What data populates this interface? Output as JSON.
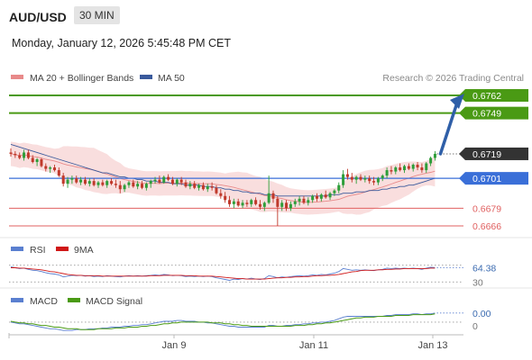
{
  "header": {
    "symbol": "AUD/USD",
    "timeframe": "30 MIN",
    "datetime": "Monday, January 12, 2026 5:45:48 PM CET"
  },
  "legend": {
    "ma20": "MA 20 + Bollinger Bands",
    "ma50": "MA 50",
    "credit": "Research © 2026 Trading Central",
    "rsi": "RSI",
    "rsi_signal": "9MA",
    "macd": "MACD",
    "macd_signal": "MACD Signal"
  },
  "colors": {
    "up_candle": "#2e9e3a",
    "down_candle": "#c0392b",
    "ma20": "#e88a8a",
    "ma50": "#3a5a9c",
    "resistance": "#4a9a14",
    "support_blue": "#3a6fd8",
    "support_red": "#e06060",
    "arrow": "#2f5fa8",
    "current_price_bg": "#333333"
  },
  "chart_data": {
    "type": "candlestick",
    "x_ticks": [
      "Jan 9",
      "Jan 11",
      "Jan 13"
    ],
    "levels": [
      {
        "value": 0.6762,
        "label": "0.6762",
        "kind": "resistance"
      },
      {
        "value": 0.6749,
        "label": "0.6749",
        "kind": "resistance"
      },
      {
        "value": 0.6719,
        "label": "0.6719",
        "kind": "current"
      },
      {
        "value": 0.6701,
        "label": "0.6701",
        "kind": "pivot"
      },
      {
        "value": 0.6679,
        "label": "0.6679",
        "kind": "support"
      },
      {
        "value": 0.6666,
        "label": "0.6666",
        "kind": "support"
      }
    ],
    "candles": [
      [
        0.672,
        0.6723,
        0.6717,
        0.6719
      ],
      [
        0.6719,
        0.6721,
        0.6716,
        0.6718
      ],
      [
        0.6718,
        0.672,
        0.6715,
        0.6716
      ],
      [
        0.6716,
        0.6722,
        0.6714,
        0.672
      ],
      [
        0.672,
        0.6722,
        0.6715,
        0.6716
      ],
      [
        0.6716,
        0.6718,
        0.6712,
        0.6713
      ],
      [
        0.6713,
        0.6716,
        0.671,
        0.6715
      ],
      [
        0.6715,
        0.6716,
        0.6709,
        0.671
      ],
      [
        0.671,
        0.6712,
        0.6706,
        0.6708
      ],
      [
        0.6708,
        0.671,
        0.6705,
        0.6709
      ],
      [
        0.6709,
        0.6711,
        0.6706,
        0.6707
      ],
      [
        0.6707,
        0.6709,
        0.6702,
        0.6703
      ],
      [
        0.6703,
        0.6705,
        0.6695,
        0.6697
      ],
      [
        0.6697,
        0.6702,
        0.6694,
        0.67
      ],
      [
        0.67,
        0.6703,
        0.6697,
        0.6701
      ],
      [
        0.6701,
        0.6703,
        0.6697,
        0.6698
      ],
      [
        0.6698,
        0.6702,
        0.6696,
        0.67
      ],
      [
        0.67,
        0.6702,
        0.6696,
        0.6697
      ],
      [
        0.6697,
        0.6701,
        0.6695,
        0.6699
      ],
      [
        0.6699,
        0.6701,
        0.6695,
        0.6696
      ],
      [
        0.6696,
        0.6699,
        0.6694,
        0.6698
      ],
      [
        0.6698,
        0.67,
        0.6695,
        0.6696
      ],
      [
        0.6696,
        0.67,
        0.6694,
        0.6699
      ],
      [
        0.6699,
        0.6701,
        0.6696,
        0.6697
      ],
      [
        0.6697,
        0.67,
        0.6694,
        0.6696
      ],
      [
        0.6696,
        0.6699,
        0.669,
        0.6693
      ],
      [
        0.6693,
        0.6697,
        0.6691,
        0.6696
      ],
      [
        0.6696,
        0.6699,
        0.6694,
        0.6698
      ],
      [
        0.6698,
        0.67,
        0.6694,
        0.6695
      ],
      [
        0.6695,
        0.6699,
        0.6693,
        0.6697
      ],
      [
        0.6697,
        0.6699,
        0.6693,
        0.6694
      ],
      [
        0.6694,
        0.6698,
        0.6692,
        0.6697
      ],
      [
        0.6697,
        0.67,
        0.6694,
        0.6699
      ],
      [
        0.6699,
        0.6702,
        0.6697,
        0.67
      ],
      [
        0.67,
        0.6703,
        0.6697,
        0.6698
      ],
      [
        0.6698,
        0.6703,
        0.6697,
        0.6702
      ],
      [
        0.6702,
        0.6704,
        0.6699,
        0.67
      ],
      [
        0.67,
        0.6702,
        0.6696,
        0.6697
      ],
      [
        0.6697,
        0.6701,
        0.6695,
        0.67
      ],
      [
        0.67,
        0.6702,
        0.6696,
        0.6698
      ],
      [
        0.6698,
        0.67,
        0.6694,
        0.6695
      ],
      [
        0.6695,
        0.6699,
        0.6693,
        0.6697
      ],
      [
        0.6697,
        0.6699,
        0.6693,
        0.6694
      ],
      [
        0.6694,
        0.6697,
        0.6692,
        0.6696
      ],
      [
        0.6696,
        0.6698,
        0.6692,
        0.6693
      ],
      [
        0.6693,
        0.6697,
        0.6691,
        0.6695
      ],
      [
        0.6695,
        0.6698,
        0.6692,
        0.6694
      ],
      [
        0.6694,
        0.6696,
        0.6689,
        0.669
      ],
      [
        0.669,
        0.6693,
        0.6686,
        0.6688
      ],
      [
        0.6688,
        0.6691,
        0.6683,
        0.6685
      ],
      [
        0.6685,
        0.6688,
        0.668,
        0.6682
      ],
      [
        0.6682,
        0.6686,
        0.6679,
        0.6684
      ],
      [
        0.6684,
        0.6686,
        0.668,
        0.6681
      ],
      [
        0.6681,
        0.6685,
        0.6679,
        0.6683
      ],
      [
        0.6683,
        0.6685,
        0.668,
        0.6682
      ],
      [
        0.6682,
        0.6686,
        0.668,
        0.6685
      ],
      [
        0.6685,
        0.6687,
        0.6681,
        0.6682
      ],
      [
        0.6682,
        0.6685,
        0.6678,
        0.668
      ],
      [
        0.668,
        0.6684,
        0.6677,
        0.6683
      ],
      [
        0.6683,
        0.6703,
        0.6682,
        0.669
      ],
      [
        0.669,
        0.6692,
        0.6683,
        0.6686
      ],
      [
        0.6686,
        0.6688,
        0.6666,
        0.668
      ],
      [
        0.668,
        0.6685,
        0.6677,
        0.6683
      ],
      [
        0.6683,
        0.6685,
        0.6677,
        0.6679
      ],
      [
        0.6679,
        0.6684,
        0.6677,
        0.6682
      ],
      [
        0.6682,
        0.6686,
        0.668,
        0.6684
      ],
      [
        0.6684,
        0.6688,
        0.6681,
        0.6686
      ],
      [
        0.6686,
        0.6688,
        0.6682,
        0.6683
      ],
      [
        0.6683,
        0.6687,
        0.6681,
        0.6685
      ],
      [
        0.6685,
        0.6689,
        0.6683,
        0.6688
      ],
      [
        0.6688,
        0.669,
        0.6684,
        0.6686
      ],
      [
        0.6686,
        0.669,
        0.6684,
        0.6689
      ],
      [
        0.6689,
        0.6692,
        0.6686,
        0.6687
      ],
      [
        0.6687,
        0.6691,
        0.6685,
        0.669
      ],
      [
        0.669,
        0.6693,
        0.6688,
        0.6692
      ],
      [
        0.6692,
        0.6698,
        0.669,
        0.6696
      ],
      [
        0.6696,
        0.6707,
        0.6694,
        0.6704
      ],
      [
        0.6704,
        0.6708,
        0.67,
        0.6702
      ],
      [
        0.6702,
        0.6705,
        0.6698,
        0.67
      ],
      [
        0.67,
        0.6703,
        0.6697,
        0.6702
      ],
      [
        0.6702,
        0.6704,
        0.6699,
        0.67
      ],
      [
        0.67,
        0.6703,
        0.6698,
        0.6701
      ],
      [
        0.6701,
        0.6703,
        0.6697,
        0.6699
      ],
      [
        0.6699,
        0.6702,
        0.6696,
        0.6698
      ],
      [
        0.6698,
        0.6702,
        0.6696,
        0.6701
      ],
      [
        0.6701,
        0.6704,
        0.6699,
        0.6703
      ],
      [
        0.6703,
        0.6709,
        0.6701,
        0.6707
      ],
      [
        0.6707,
        0.671,
        0.6704,
        0.6706
      ],
      [
        0.6706,
        0.671,
        0.6704,
        0.6709
      ],
      [
        0.6709,
        0.6712,
        0.6706,
        0.6707
      ],
      [
        0.6707,
        0.6711,
        0.6705,
        0.671
      ],
      [
        0.671,
        0.6712,
        0.6707,
        0.6708
      ],
      [
        0.6708,
        0.6712,
        0.6706,
        0.6711
      ],
      [
        0.6711,
        0.6713,
        0.6707,
        0.6709
      ],
      [
        0.6709,
        0.6712,
        0.6705,
        0.6707
      ],
      [
        0.6707,
        0.6713,
        0.6705,
        0.6712
      ],
      [
        0.6712,
        0.6717,
        0.671,
        0.6716
      ],
      [
        0.6716,
        0.6721,
        0.6714,
        0.6719
      ]
    ],
    "ma50": [
      0.6726,
      0.6725,
      0.6724,
      0.6723,
      0.6722,
      0.6721,
      0.672,
      0.6719,
      0.6718,
      0.6717,
      0.6716,
      0.6715,
      0.6714,
      0.6713,
      0.6712,
      0.6711,
      0.671,
      0.6709,
      0.6708,
      0.6707,
      0.6706,
      0.6705,
      0.6705,
      0.6704,
      0.6703,
      0.6702,
      0.6702,
      0.6701,
      0.6701,
      0.67,
      0.67,
      0.6699,
      0.6699,
      0.6699,
      0.6698,
      0.6698,
      0.6698,
      0.6697,
      0.6697,
      0.6697,
      0.6696,
      0.6696,
      0.6696,
      0.6696,
      0.6695,
      0.6695,
      0.6695,
      0.6694,
      0.6694,
      0.6693,
      0.6693,
      0.6692,
      0.6692,
      0.6691,
      0.6691,
      0.669,
      0.669,
      0.669,
      0.6689,
      0.6689,
      0.6689,
      0.6688,
      0.6688,
      0.6688,
      0.6688,
      0.6688,
      0.6688,
      0.6688,
      0.6688,
      0.6688,
      0.6688,
      0.6688,
      0.6688,
      0.6689,
      0.6689,
      0.6689,
      0.669,
      0.669,
      0.669,
      0.6691,
      0.6691,
      0.6691,
      0.6692,
      0.6692,
      0.6692,
      0.6693,
      0.6693,
      0.6694,
      0.6694,
      0.6695,
      0.6695,
      0.6696,
      0.6696,
      0.6697,
      0.6698,
      0.6699,
      0.67,
      0.6701
    ],
    "rsi": {
      "value_label": "64.38",
      "level_label": "30",
      "levels": [
        70,
        30
      ],
      "ylim": [
        20,
        80
      ],
      "rsi": [
        66,
        64,
        62,
        63,
        60,
        58,
        57,
        55,
        52,
        50,
        49,
        47,
        42,
        44,
        46,
        45,
        46,
        44,
        45,
        43,
        44,
        43,
        45,
        44,
        43,
        42,
        44,
        45,
        44,
        45,
        44,
        45,
        46,
        47,
        46,
        48,
        47,
        45,
        46,
        45,
        43,
        44,
        43,
        44,
        43,
        44,
        43,
        40,
        38,
        36,
        34,
        37,
        36,
        38,
        37,
        39,
        37,
        36,
        38,
        45,
        43,
        40,
        42,
        41,
        43,
        44,
        45,
        44,
        45,
        47,
        46,
        48,
        47,
        49,
        51,
        55,
        62,
        60,
        58,
        59,
        58,
        59,
        58,
        57,
        59,
        60,
        63,
        62,
        63,
        62,
        63,
        62,
        63,
        62,
        60,
        63,
        65,
        64.38
      ],
      "ma9": [
        64,
        64,
        63,
        63,
        62,
        61,
        60,
        59,
        57,
        55,
        54,
        52,
        50,
        48,
        47,
        46,
        46,
        45,
        45,
        45,
        45,
        44,
        44,
        44,
        44,
        44,
        44,
        44,
        44,
        44,
        44,
        44,
        45,
        45,
        45,
        46,
        46,
        46,
        46,
        46,
        45,
        45,
        45,
        44,
        44,
        44,
        44,
        43,
        42,
        41,
        40,
        39,
        38,
        38,
        37,
        37,
        37,
        37,
        37,
        38,
        39,
        40,
        40,
        41,
        41,
        42,
        42,
        43,
        43,
        44,
        45,
        45,
        46,
        46,
        47,
        48,
        50,
        52,
        54,
        55,
        57,
        58,
        58,
        58,
        59,
        59,
        60,
        60,
        61,
        61,
        62,
        62,
        62,
        62,
        62,
        62,
        63,
        63
      ]
    },
    "macd": {
      "value_label": "0.00",
      "zero_label": "0",
      "ylim": [
        -0.0012,
        0.0014
      ],
      "macd": [
        0.0,
        -0.0001,
        -0.0002,
        -0.0002,
        -0.0003,
        -0.0004,
        -0.0005,
        -0.0006,
        -0.0007,
        -0.0008,
        -0.0008,
        -0.0009,
        -0.001,
        -0.001,
        -0.001,
        -0.0009,
        -0.0009,
        -0.0009,
        -0.0008,
        -0.0008,
        -0.0008,
        -0.0007,
        -0.0007,
        -0.0006,
        -0.0006,
        -0.0006,
        -0.0005,
        -0.0005,
        -0.0004,
        -0.0004,
        -0.0003,
        -0.0003,
        -0.0002,
        -0.0001,
        0.0,
        0.0001,
        0.0001,
        0.0001,
        0.0002,
        0.0002,
        0.0001,
        0.0001,
        0.0001,
        0.0,
        0.0,
        -0.0001,
        -0.0001,
        -0.0002,
        -0.0003,
        -0.0004,
        -0.0005,
        -0.0005,
        -0.0006,
        -0.0006,
        -0.0006,
        -0.0006,
        -0.0006,
        -0.0006,
        -0.0006,
        -0.0004,
        -0.0004,
        -0.0005,
        -0.0005,
        -0.0004,
        -0.0004,
        -0.0003,
        -0.0003,
        -0.0002,
        -0.0002,
        -0.0001,
        -0.0001,
        0.0,
        0.0,
        0.0001,
        0.0002,
        0.0004,
        0.0006,
        0.0007,
        0.0007,
        0.0007,
        0.0007,
        0.0007,
        0.0007,
        0.0007,
        0.0007,
        0.0007,
        0.0008,
        0.0008,
        0.0009,
        0.0009,
        0.0009,
        0.0009,
        0.001,
        0.001,
        0.0009,
        0.001,
        0.001,
        0.0011
      ],
      "signal": [
        0.0001,
        0.0,
        -0.0001,
        -0.0001,
        -0.0002,
        -0.0002,
        -0.0003,
        -0.0004,
        -0.0004,
        -0.0005,
        -0.0006,
        -0.0006,
        -0.0007,
        -0.0008,
        -0.0008,
        -0.0008,
        -0.0009,
        -0.0009,
        -0.0009,
        -0.0009,
        -0.0008,
        -0.0008,
        -0.0008,
        -0.0008,
        -0.0007,
        -0.0007,
        -0.0007,
        -0.0006,
        -0.0006,
        -0.0006,
        -0.0005,
        -0.0005,
        -0.0004,
        -0.0004,
        -0.0003,
        -0.0002,
        -0.0002,
        -0.0001,
        -0.0001,
        0.0,
        0.0,
        0.0,
        0.0,
        0.0,
        0.0,
        0.0,
        -0.0001,
        -0.0001,
        -0.0001,
        -0.0002,
        -0.0002,
        -0.0003,
        -0.0003,
        -0.0004,
        -0.0004,
        -0.0005,
        -0.0005,
        -0.0005,
        -0.0005,
        -0.0005,
        -0.0005,
        -0.0005,
        -0.0005,
        -0.0005,
        -0.0005,
        -0.0004,
        -0.0004,
        -0.0004,
        -0.0003,
        -0.0003,
        -0.0002,
        -0.0002,
        -0.0001,
        -0.0001,
        0.0,
        0.0001,
        0.0002,
        0.0003,
        0.0004,
        0.0005,
        0.0005,
        0.0006,
        0.0006,
        0.0006,
        0.0007,
        0.0007,
        0.0007,
        0.0007,
        0.0008,
        0.0008,
        0.0008,
        0.0008,
        0.0009,
        0.0009,
        0.0009,
        0.0009,
        0.0009,
        0.001
      ]
    }
  }
}
